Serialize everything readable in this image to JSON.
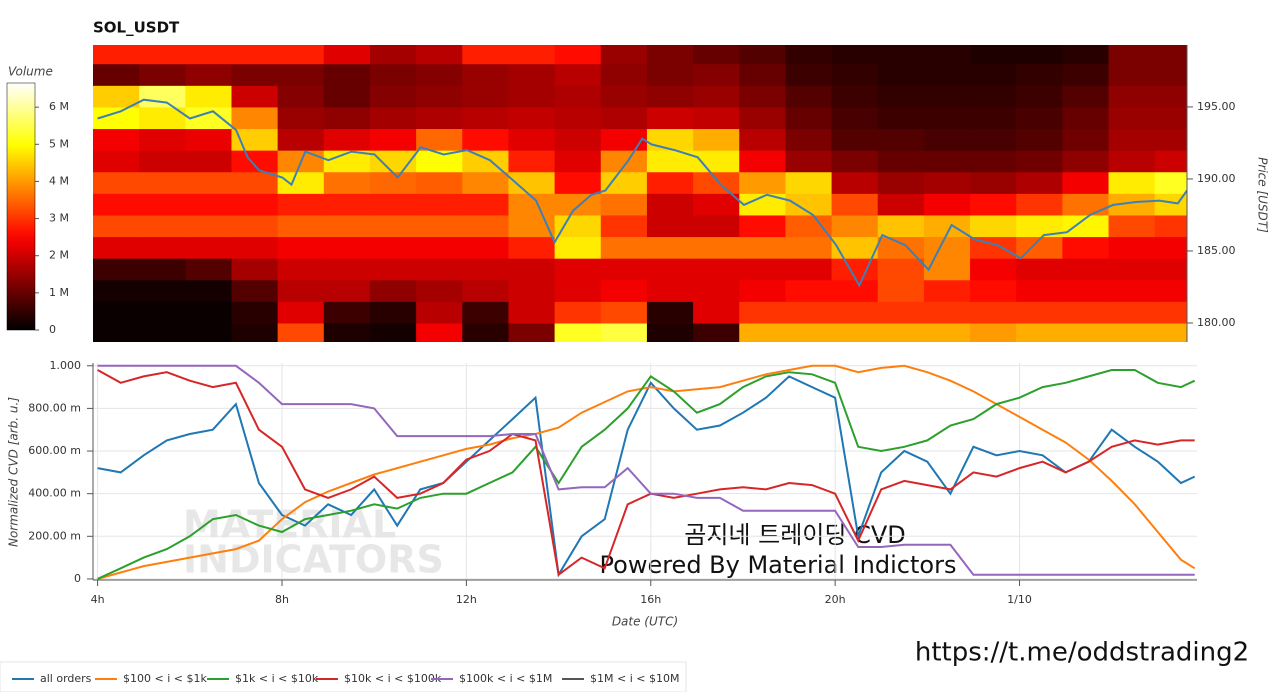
{
  "chart_data": [
    {
      "type": "heatmap",
      "title": "SOL_USDT",
      "y_label": "Price [USDT]",
      "xlim": [
        3.9,
        27.6
      ],
      "ylim": [
        178.68,
        199.3
      ],
      "yticks": [
        {
          "value": 180,
          "label": "180.00"
        },
        {
          "value": 185,
          "label": "185.00"
        },
        {
          "value": 190,
          "label": "190.00"
        },
        {
          "value": 195,
          "label": "195.00"
        }
      ],
      "xbins": [
        3.9,
        4.9,
        5.9,
        6.9,
        7.9,
        8.9,
        9.9,
        10.9,
        11.9,
        12.9,
        13.9,
        14.9,
        15.9,
        16.9,
        17.9,
        18.9,
        19.9,
        20.9,
        21.9,
        22.9,
        23.9,
        24.9,
        25.9,
        26.9,
        27.6
      ],
      "ybins": [
        178.5,
        180,
        181.5,
        183,
        184.5,
        186,
        187.5,
        189,
        190.5,
        192,
        193.5,
        195,
        196.5,
        198,
        199.5
      ],
      "z": [
        [
          0.1,
          0.1,
          0.1,
          0.3,
          3.2,
          0.3,
          0.2,
          2.4,
          0.4,
          1.2,
          5.2,
          5.4,
          0.3,
          0.6,
          4.2,
          4.2,
          4.2,
          4.2,
          4.2,
          4.0,
          4.2,
          4.2,
          4.2,
          4.2
        ],
        [
          0.1,
          0.1,
          0.1,
          0.4,
          2.2,
          0.6,
          0.4,
          1.8,
          0.6,
          2.0,
          3.0,
          3.2,
          0.4,
          2.2,
          3.0,
          3.0,
          3.0,
          3.0,
          3.0,
          3.0,
          3.0,
          3.0,
          3.0,
          3.0
        ],
        [
          0.2,
          0.2,
          0.2,
          0.8,
          1.8,
          1.8,
          1.4,
          1.6,
          1.8,
          2.0,
          2.2,
          2.4,
          2.2,
          2.2,
          2.4,
          2.6,
          2.6,
          3.2,
          2.8,
          2.6,
          2.4,
          2.4,
          2.4,
          2.4
        ],
        [
          0.6,
          0.6,
          0.8,
          1.6,
          2.0,
          2.0,
          2.0,
          2.0,
          2.0,
          2.0,
          2.2,
          2.2,
          2.2,
          2.2,
          2.2,
          2.2,
          2.8,
          3.2,
          3.8,
          2.4,
          2.2,
          2.2,
          2.2,
          2.2
        ],
        [
          2.2,
          2.2,
          2.2,
          2.2,
          2.4,
          2.4,
          2.4,
          2.4,
          2.4,
          2.8,
          4.8,
          3.6,
          3.6,
          3.6,
          3.6,
          3.6,
          4.4,
          3.6,
          3.8,
          3.0,
          3.4,
          2.6,
          2.4,
          2.4
        ],
        [
          3.2,
          3.2,
          3.2,
          3.2,
          3.4,
          3.4,
          3.4,
          3.4,
          3.4,
          3.8,
          4.6,
          3.0,
          2.0,
          2.0,
          2.6,
          3.4,
          3.8,
          4.4,
          4.2,
          4.6,
          4.8,
          4.9,
          3.2,
          3.0
        ],
        [
          2.6,
          2.6,
          2.6,
          2.6,
          2.8,
          2.8,
          2.8,
          2.8,
          2.8,
          3.8,
          3.8,
          3.6,
          2.0,
          2.2,
          4.8,
          4.4,
          3.2,
          2.0,
          2.4,
          2.6,
          3.0,
          3.6,
          4.2,
          4.6
        ],
        [
          3.2,
          3.2,
          3.2,
          3.2,
          4.8,
          3.6,
          3.5,
          3.4,
          3.8,
          4.4,
          2.6,
          4.5,
          2.8,
          3.2,
          4.0,
          4.6,
          1.8,
          1.5,
          1.6,
          1.5,
          1.7,
          2.4,
          4.8,
          5.2
        ],
        [
          2.2,
          2.0,
          2.0,
          2.6,
          3.8,
          4.8,
          4.6,
          5.0,
          4.5,
          2.8,
          2.2,
          3.8,
          4.8,
          4.8,
          2.4,
          1.5,
          1.2,
          1.0,
          1.0,
          1.0,
          1.1,
          1.4,
          1.8,
          2.0
        ],
        [
          2.4,
          2.2,
          2.3,
          4.5,
          1.8,
          2.2,
          2.4,
          3.5,
          2.6,
          2.2,
          2.0,
          2.4,
          4.6,
          4.2,
          1.8,
          1.2,
          0.8,
          0.8,
          0.7,
          0.7,
          0.8,
          1.1,
          1.6,
          1.6
        ],
        [
          5.0,
          4.8,
          5.2,
          3.8,
          1.5,
          1.4,
          1.6,
          1.7,
          1.8,
          1.9,
          1.8,
          1.7,
          2.0,
          1.9,
          1.5,
          1.0,
          0.7,
          0.6,
          0.6,
          0.6,
          0.7,
          1.0,
          1.5,
          1.5
        ],
        [
          4.5,
          5.6,
          4.8,
          2.0,
          1.3,
          1.0,
          1.3,
          1.4,
          1.5,
          1.6,
          1.7,
          1.5,
          1.4,
          1.5,
          1.2,
          0.8,
          0.6,
          0.5,
          0.5,
          0.5,
          0.6,
          0.8,
          1.4,
          1.4
        ],
        [
          1.0,
          1.2,
          1.4,
          1.2,
          1.2,
          1.0,
          1.2,
          1.3,
          1.5,
          1.6,
          1.8,
          1.4,
          1.2,
          1.3,
          1.0,
          0.6,
          0.5,
          0.4,
          0.4,
          0.4,
          0.5,
          0.6,
          1.2,
          1.2
        ],
        [
          2.8,
          2.8,
          2.8,
          2.8,
          2.8,
          2.2,
          1.6,
          1.8,
          2.8,
          2.8,
          2.6,
          1.5,
          1.2,
          1.0,
          0.8,
          0.5,
          0.4,
          0.4,
          0.4,
          0.3,
          0.3,
          0.4,
          1.2,
          1.2
        ]
      ],
      "colorbar": {
        "label": "Volume",
        "clim": [
          0,
          6.65
        ],
        "ticks": [
          0,
          {
            "value": 1,
            "label": "1 M"
          },
          {
            "value": 2,
            "label": "2 M"
          },
          {
            "value": 3,
            "label": "3 M"
          },
          {
            "value": 4,
            "label": "4 M"
          },
          {
            "value": 5,
            "label": "5 M"
          },
          {
            "value": 6,
            "label": "6 M"
          }
        ]
      },
      "price_line": {
        "color": "#3d80b8",
        "x": [
          4.0,
          4.5,
          5.0,
          5.5,
          6.0,
          6.5,
          7.0,
          7.25,
          7.5,
          8.0,
          8.2,
          8.5,
          9.0,
          9.5,
          10.0,
          10.5,
          11.0,
          11.5,
          12.0,
          12.5,
          13.0,
          13.5,
          13.9,
          14.3,
          14.7,
          15.0,
          15.5,
          15.8,
          16.0,
          16.5,
          17.0,
          17.5,
          18.0,
          18.5,
          19.0,
          19.5,
          20.0,
          20.5,
          21.0,
          21.5,
          22.0,
          22.5,
          23.0,
          23.5,
          24.0,
          24.5,
          25.0,
          25.5,
          26.0,
          26.5,
          27.0,
          27.4,
          27.6
        ],
        "values": [
          194.2,
          194.7,
          195.5,
          195.3,
          194.2,
          194.7,
          193.4,
          191.5,
          190.6,
          190.1,
          189.6,
          191.9,
          191.3,
          191.9,
          191.7,
          190.1,
          192.2,
          191.7,
          192.0,
          191.3,
          189.9,
          188.5,
          185.6,
          187.8,
          188.9,
          189.2,
          191.3,
          192.8,
          192.4,
          192.0,
          191.5,
          189.6,
          188.2,
          188.9,
          188.5,
          187.5,
          185.4,
          182.6,
          186.1,
          185.4,
          183.7,
          186.8,
          185.8,
          185.4,
          184.5,
          186.1,
          186.3,
          187.5,
          188.2,
          188.4,
          188.5,
          188.3,
          189.2
        ]
      }
    },
    {
      "type": "line",
      "x_label": "Date (UTC)",
      "y_label": "Normalized CVD [arb. u.]",
      "grid": true,
      "legend": "bottom",
      "xlim": [
        3.9,
        27.85
      ],
      "ylim": [
        -0.005,
        1.013
      ],
      "xticks": [
        {
          "value": 4,
          "label": "4h"
        },
        {
          "value": 8,
          "label": "8h"
        },
        {
          "value": 12,
          "label": "12h"
        },
        {
          "value": 16,
          "label": "16h"
        },
        {
          "value": 20,
          "label": "20h"
        },
        {
          "value": 24,
          "label": "1/10"
        }
      ],
      "yticks": [
        0,
        {
          "value": 0.2,
          "label": "200.00 m"
        },
        {
          "value": 0.4,
          "label": "400.00 m"
        },
        {
          "value": 0.6,
          "label": "600.00 m"
        },
        {
          "value": 0.8,
          "label": "800.00 m"
        },
        {
          "value": 1,
          "label": "1.000"
        }
      ],
      "x": [
        4.0,
        4.5,
        5.0,
        5.5,
        6.0,
        6.5,
        7.0,
        7.5,
        8.0,
        8.5,
        9.0,
        9.5,
        10.0,
        10.5,
        11.0,
        11.5,
        12.0,
        12.5,
        13.0,
        13.5,
        14.0,
        14.5,
        15.0,
        15.5,
        16.0,
        16.5,
        17.0,
        17.5,
        18.0,
        18.5,
        19.0,
        19.5,
        20.0,
        20.5,
        21.0,
        21.5,
        22.0,
        22.5,
        23.0,
        23.5,
        24.0,
        24.5,
        25.0,
        25.5,
        26.0,
        26.5,
        27.0,
        27.5,
        27.8
      ],
      "series": [
        {
          "name": "all orders",
          "color": "#1f77b4",
          "values": [
            0.52,
            0.5,
            0.58,
            0.65,
            0.68,
            0.7,
            0.82,
            0.45,
            0.3,
            0.25,
            0.35,
            0.3,
            0.42,
            0.25,
            0.42,
            0.45,
            0.55,
            0.65,
            0.75,
            0.85,
            0.02,
            0.2,
            0.28,
            0.7,
            0.92,
            0.8,
            0.7,
            0.72,
            0.78,
            0.85,
            0.95,
            0.9,
            0.85,
            0.2,
            0.5,
            0.6,
            0.55,
            0.4,
            0.62,
            0.58,
            0.6,
            0.58,
            0.5,
            0.55,
            0.7,
            0.62,
            0.55,
            0.45,
            0.48
          ]
        },
        {
          "name": "$100 < i < $1k",
          "color": "#ff7f0e",
          "values": [
            0.0,
            0.03,
            0.06,
            0.08,
            0.1,
            0.12,
            0.14,
            0.18,
            0.28,
            0.36,
            0.41,
            0.45,
            0.49,
            0.52,
            0.55,
            0.58,
            0.61,
            0.63,
            0.66,
            0.68,
            0.71,
            0.78,
            0.83,
            0.88,
            0.9,
            0.88,
            0.89,
            0.9,
            0.93,
            0.96,
            0.98,
            1.0,
            1.0,
            0.97,
            0.99,
            1.0,
            0.97,
            0.93,
            0.88,
            0.82,
            0.76,
            0.7,
            0.64,
            0.56,
            0.46,
            0.35,
            0.22,
            0.09,
            0.05
          ]
        },
        {
          "name": "$1k < i < $10k",
          "color": "#2ca02c",
          "values": [
            0.0,
            0.05,
            0.1,
            0.14,
            0.2,
            0.28,
            0.3,
            0.25,
            0.22,
            0.28,
            0.3,
            0.32,
            0.35,
            0.33,
            0.38,
            0.4,
            0.4,
            0.45,
            0.5,
            0.62,
            0.45,
            0.62,
            0.7,
            0.8,
            0.95,
            0.88,
            0.78,
            0.82,
            0.9,
            0.95,
            0.97,
            0.96,
            0.92,
            0.62,
            0.6,
            0.62,
            0.65,
            0.72,
            0.75,
            0.82,
            0.85,
            0.9,
            0.92,
            0.95,
            0.98,
            0.98,
            0.92,
            0.9,
            0.93
          ]
        },
        {
          "name": "$10k < i < $100k",
          "color": "#d62728",
          "values": [
            0.98,
            0.92,
            0.95,
            0.97,
            0.93,
            0.9,
            0.92,
            0.7,
            0.62,
            0.42,
            0.38,
            0.42,
            0.48,
            0.38,
            0.4,
            0.45,
            0.56,
            0.6,
            0.68,
            0.65,
            0.02,
            0.1,
            0.05,
            0.35,
            0.4,
            0.38,
            0.4,
            0.42,
            0.43,
            0.42,
            0.45,
            0.44,
            0.4,
            0.18,
            0.42,
            0.46,
            0.44,
            0.42,
            0.5,
            0.48,
            0.52,
            0.55,
            0.5,
            0.55,
            0.62,
            0.65,
            0.63,
            0.65,
            0.65
          ]
        },
        {
          "name": "$100k < i < $1M",
          "color": "#9467bd",
          "values": [
            1.0,
            1.0,
            1.0,
            1.0,
            1.0,
            1.0,
            1.0,
            0.92,
            0.82,
            0.82,
            0.82,
            0.82,
            0.8,
            0.67,
            0.67,
            0.67,
            0.67,
            0.67,
            0.68,
            0.68,
            0.42,
            0.43,
            0.43,
            0.52,
            0.4,
            0.4,
            0.38,
            0.38,
            0.32,
            0.32,
            0.32,
            0.32,
            0.32,
            0.15,
            0.15,
            0.16,
            0.16,
            0.16,
            0.02,
            0.02,
            0.02,
            0.02,
            0.02,
            0.02,
            0.02,
            0.02,
            0.02,
            0.02,
            0.02
          ]
        },
        {
          "name": "$1M < i < $10M",
          "color": "#555555",
          "values": [
            null,
            null,
            null,
            null,
            null,
            null,
            null,
            null,
            null,
            null,
            null,
            null,
            null,
            null,
            null,
            null,
            null,
            null,
            null,
            null,
            null,
            null,
            null,
            null,
            null,
            null,
            null,
            null,
            null,
            null,
            null,
            null,
            null,
            null,
            null,
            null,
            null,
            null,
            null,
            null,
            null,
            null,
            null,
            null,
            null,
            null,
            null,
            null,
            null
          ]
        }
      ],
      "annotations": [
        "곰지네 트레이딩 CVD",
        "Powered By Material Indictors"
      ],
      "watermark": [
        "MATERIAL",
        "INDICATORS"
      ]
    }
  ],
  "link": "https://t.me/oddstrading2"
}
